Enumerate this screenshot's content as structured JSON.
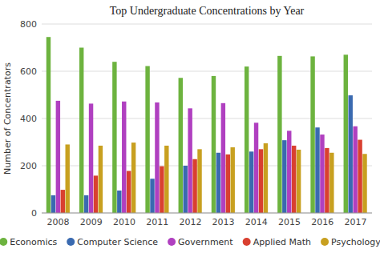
{
  "chart_data": {
    "type": "bar",
    "title": "Top Undergraduate Concentrations by Year",
    "ylabel": "Number of Concentrators",
    "categories": [
      "2008",
      "2009",
      "2010",
      "2011",
      "2012",
      "2013",
      "2014",
      "2015",
      "2016",
      "2017"
    ],
    "series": [
      {
        "name": "Economics",
        "color": "#6db33f",
        "values": [
          745,
          700,
          640,
          622,
          572,
          580,
          620,
          665,
          663,
          670
        ]
      },
      {
        "name": "Computer Science",
        "color": "#3a6ab0",
        "values": [
          75,
          75,
          95,
          145,
          200,
          255,
          260,
          308,
          362,
          498
        ]
      },
      {
        "name": "Government",
        "color": "#b040c0",
        "values": [
          475,
          463,
          472,
          468,
          443,
          465,
          382,
          348,
          332,
          367
        ]
      },
      {
        "name": "Applied Math",
        "color": "#d94030",
        "values": [
          98,
          158,
          178,
          198,
          228,
          248,
          270,
          285,
          275,
          310
        ]
      },
      {
        "name": "Psychology",
        "color": "#c8a020",
        "values": [
          290,
          285,
          298,
          285,
          270,
          278,
          295,
          268,
          255,
          250
        ]
      }
    ],
    "ylim": [
      0,
      800
    ],
    "yticks": [
      0,
      200,
      400,
      600,
      800
    ],
    "grid": true,
    "legend": "bottom"
  }
}
